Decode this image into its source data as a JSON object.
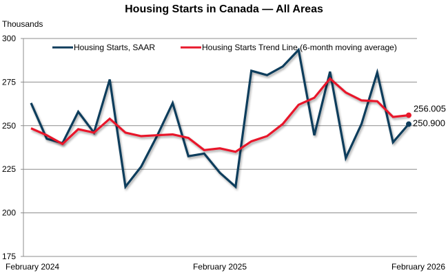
{
  "chart_data": {
    "type": "line",
    "title": "Housing Starts in Canada — All Areas",
    "ylabel": "Thousands",
    "xlabel": "",
    "ylim": [
      175,
      300
    ],
    "yticks": [
      175,
      200,
      225,
      250,
      275,
      300
    ],
    "grid": true,
    "legend_position": "top",
    "x": [
      "Feb 2024",
      "Mar 2024",
      "Apr 2024",
      "May 2024",
      "Jun 2024",
      "Jul 2024",
      "Aug 2024",
      "Sep 2024",
      "Oct 2024",
      "Nov 2024",
      "Dec 2024",
      "Jan 2025",
      "Feb 2025",
      "Mar 2025",
      "Apr 2025",
      "May 2025",
      "Jun 2025",
      "Jul 2025",
      "Aug 2025",
      "Sep 2025",
      "Oct 2025",
      "Nov 2025",
      "Dec 2025",
      "Jan 2026",
      "Feb 2026"
    ],
    "xtick_labels": [
      {
        "index": 0,
        "label": "February 2024"
      },
      {
        "index": 12,
        "label": "February 2025"
      },
      {
        "index": 24,
        "label": "February 2026"
      }
    ],
    "series": [
      {
        "name": "Housing Starts, SAAR",
        "color": "#0f3d5c",
        "values": [
          263,
          242.5,
          240,
          258,
          246,
          276.5,
          215,
          226.5,
          244,
          263,
          232.5,
          234,
          223,
          215,
          281.5,
          279,
          284,
          293.5,
          244.5,
          281,
          231.5,
          251,
          280.5,
          240.5,
          250.9
        ],
        "end_label": "250.900"
      },
      {
        "name": "Housing Starts Trend Line (6-month moving average)",
        "color": "#e8192c",
        "values": [
          248.5,
          244.5,
          239.5,
          248,
          246,
          254,
          246,
          244,
          244.5,
          245,
          243,
          236,
          237,
          235,
          241,
          244,
          251,
          262,
          266,
          277,
          269,
          264.5,
          264,
          255,
          256.005
        ],
        "end_label": "256.005"
      }
    ]
  }
}
